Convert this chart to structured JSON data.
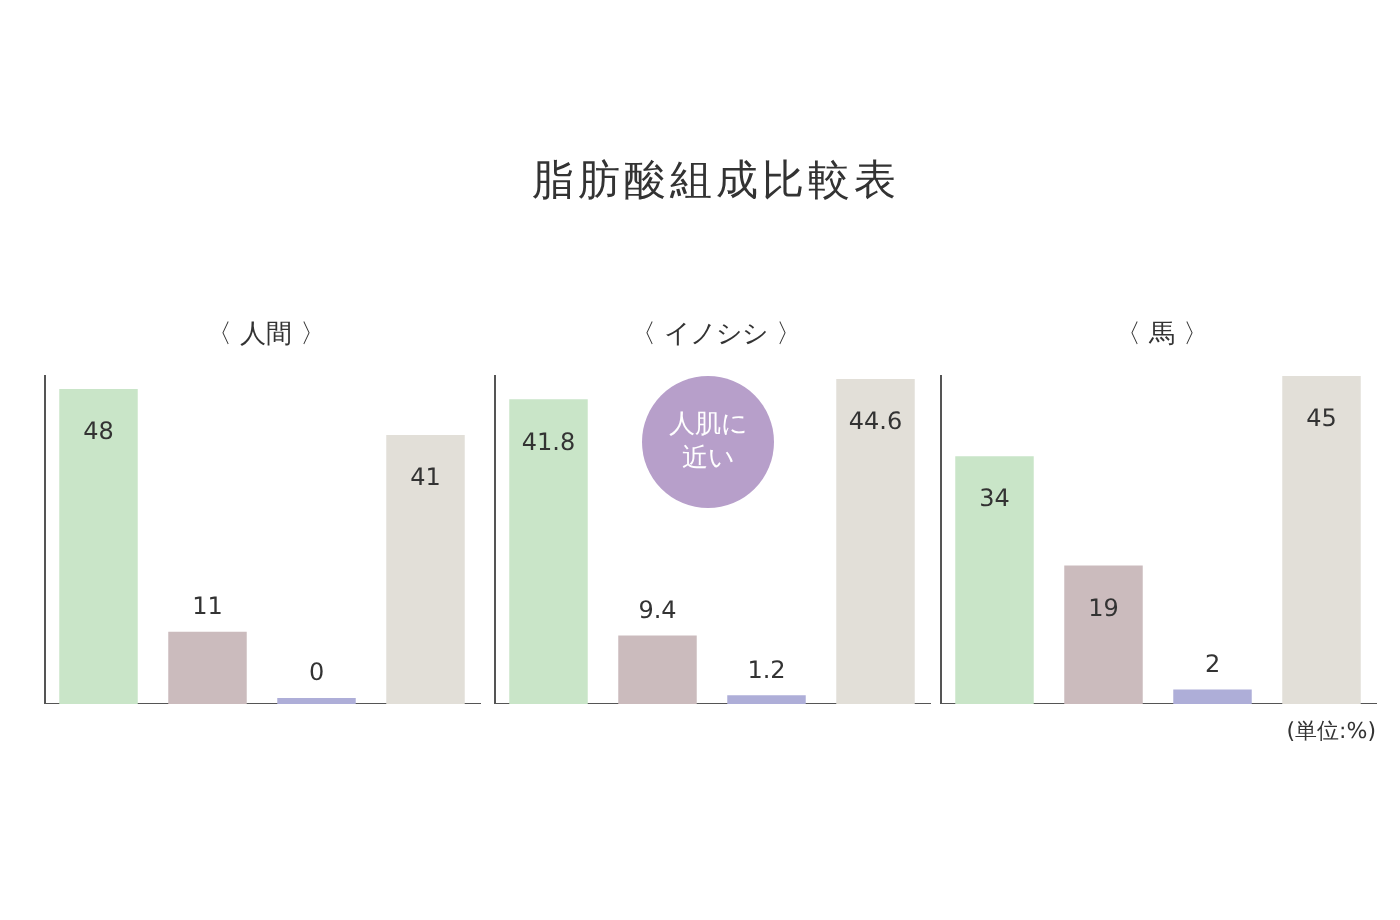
{
  "chart_data": [
    {
      "type": "bar",
      "subtitle": "〈 人間 〉",
      "categories": [
        null,
        null,
        null,
        null
      ],
      "values": [
        48,
        11,
        0,
        41
      ],
      "colors": [
        "#c9e5c8",
        "#cbbbbd",
        "#aeaed8",
        "#e2dfd8"
      ],
      "data_labels": true,
      "grid": false,
      "tick_labels": false
    },
    {
      "type": "bar",
      "title": "脂肪酸組成比較表",
      "subtitle": "〈 イノシシ 〉",
      "categories": [
        null,
        null,
        null,
        null
      ],
      "values": [
        41.8,
        9.4,
        1.2,
        44.6
      ],
      "colors": [
        "#c9e5c8",
        "#cbbbbd",
        "#aeaed8",
        "#e2dfd8"
      ],
      "data_labels": true,
      "grid": false,
      "tick_labels": false,
      "annotations": [
        "人肌に近い"
      ]
    },
    {
      "type": "bar",
      "subtitle": "〈 馬 〉",
      "categories": [
        null,
        null,
        null,
        null
      ],
      "values": [
        34,
        19,
        2,
        45
      ],
      "colors": [
        "#c9e5c8",
        "#cbbbbd",
        "#aeaed8",
        "#e2dfd8"
      ],
      "data_labels": true,
      "grid": false,
      "tick_labels": false,
      "annotations": [
        "(単位:%)"
      ]
    }
  ]
}
